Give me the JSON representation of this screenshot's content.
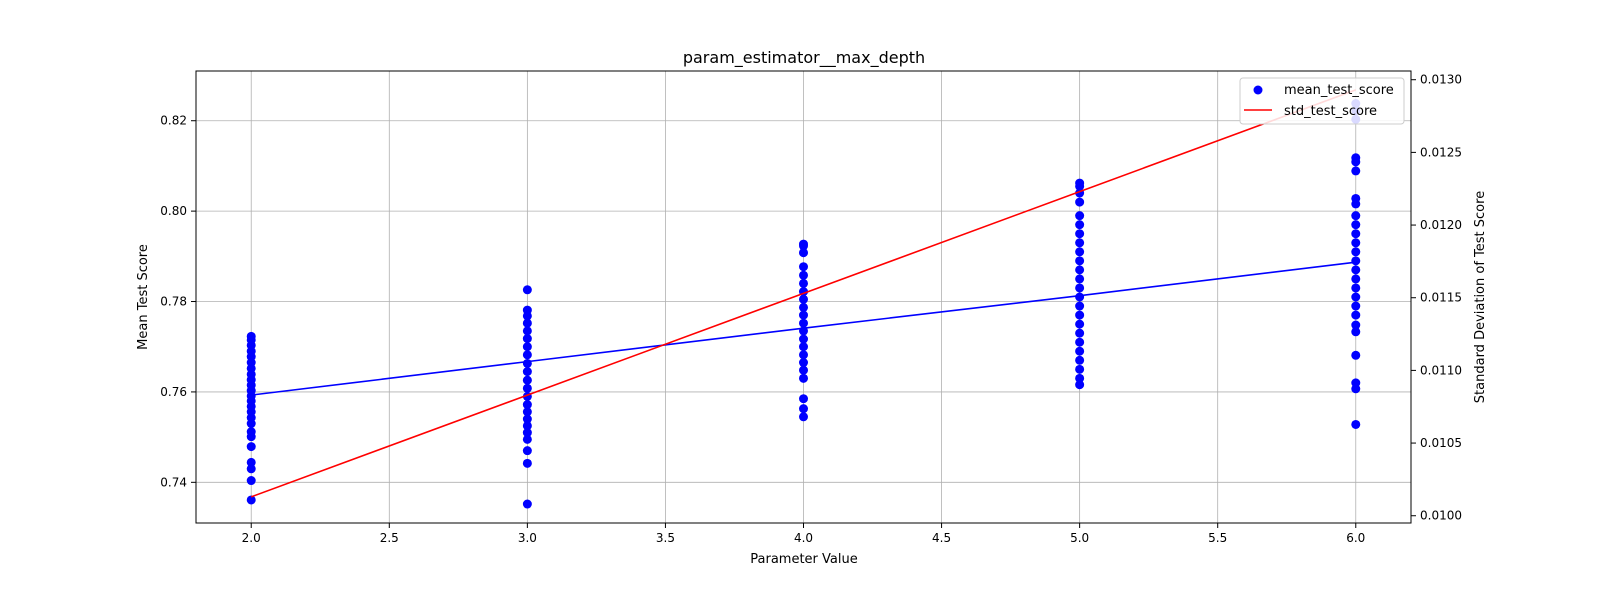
{
  "chart_data": {
    "type": "scatter",
    "title": "param_estimator__max_depth",
    "xlabel": "Parameter Value",
    "ylabel": "Mean Test Score",
    "y2label": "Standard Deviation of Test Score",
    "xlim": [
      1.8,
      6.2
    ],
    "ylim": [
      0.731,
      0.831
    ],
    "y2lim": [
      0.00995,
      0.01306
    ],
    "xticks": [
      2.0,
      2.5,
      3.0,
      3.5,
      4.0,
      4.5,
      5.0,
      5.5,
      6.0
    ],
    "xtick_labels": [
      "2.0",
      "2.5",
      "3.0",
      "3.5",
      "4.0",
      "4.5",
      "5.0",
      "5.5",
      "6.0"
    ],
    "yticks": [
      0.74,
      0.76,
      0.78,
      0.8,
      0.82
    ],
    "ytick_labels": [
      "0.74",
      "0.76",
      "0.78",
      "0.80",
      "0.82"
    ],
    "y2ticks": [
      0.01,
      0.0105,
      0.011,
      0.0115,
      0.012,
      0.0125,
      0.013
    ],
    "y2tick_labels": [
      "0.0100",
      "0.0105",
      "0.0110",
      "0.0115",
      "0.0120",
      "0.0125",
      "0.0130"
    ],
    "grid": true,
    "legend_position": "top-right",
    "series": [
      {
        "name": "mean_test_score",
        "kind": "scatter",
        "axis": "left",
        "color": "#0000ff",
        "points": [
          {
            "x": 2,
            "y": [
              0.7361,
              0.7404,
              0.743,
              0.7444,
              0.7479,
              0.7501,
              0.7512,
              0.753,
              0.7543,
              0.7556,
              0.7568,
              0.758,
              0.7591,
              0.7603,
              0.7615,
              0.7627,
              0.7639,
              0.7652,
              0.7665,
              0.7678,
              0.769,
              0.7703,
              0.7715,
              0.7723
            ]
          },
          {
            "x": 3,
            "y": [
              0.7352,
              0.7442,
              0.747,
              0.7495,
              0.751,
              0.7525,
              0.754,
              0.7556,
              0.7572,
              0.759,
              0.7608,
              0.7626,
              0.7645,
              0.7663,
              0.7682,
              0.77,
              0.7718,
              0.7735,
              0.7752,
              0.7768,
              0.7781,
              0.7826
            ]
          },
          {
            "x": 4,
            "y": [
              0.7545,
              0.7563,
              0.7585,
              0.763,
              0.7648,
              0.7665,
              0.7682,
              0.77,
              0.7717,
              0.7735,
              0.7752,
              0.777,
              0.7787,
              0.7805,
              0.7822,
              0.784,
              0.7858,
              0.7877,
              0.7908,
              0.7923,
              0.7927
            ]
          },
          {
            "x": 5,
            "y": [
              0.7616,
              0.763,
              0.765,
              0.767,
              0.769,
              0.771,
              0.773,
              0.775,
              0.777,
              0.779,
              0.781,
              0.783,
              0.785,
              0.787,
              0.789,
              0.791,
              0.793,
              0.795,
              0.797,
              0.799,
              0.802,
              0.804,
              0.8055,
              0.8062
            ]
          },
          {
            "x": 6,
            "y": [
              0.7528,
              0.7607,
              0.762,
              0.7681,
              0.7733,
              0.7748,
              0.777,
              0.779,
              0.781,
              0.783,
              0.785,
              0.787,
              0.789,
              0.791,
              0.793,
              0.795,
              0.797,
              0.799,
              0.8016,
              0.8028,
              0.8089,
              0.8109,
              0.8118,
              0.8203,
              0.8222,
              0.8238
            ]
          }
        ]
      },
      {
        "name": "",
        "kind": "line",
        "axis": "left",
        "color": "#0000ff",
        "x": [
          2,
          3,
          4,
          5,
          6
        ],
        "y": [
          0.7593,
          0.7667,
          0.7741,
          0.7813,
          0.7887
        ]
      },
      {
        "name": "std_test_score",
        "kind": "line",
        "axis": "right",
        "color": "#ff0000",
        "x": [
          2,
          3,
          4,
          5,
          6
        ],
        "y": [
          0.01013,
          0.01083,
          0.01153,
          0.01223,
          0.01293
        ]
      }
    ]
  }
}
